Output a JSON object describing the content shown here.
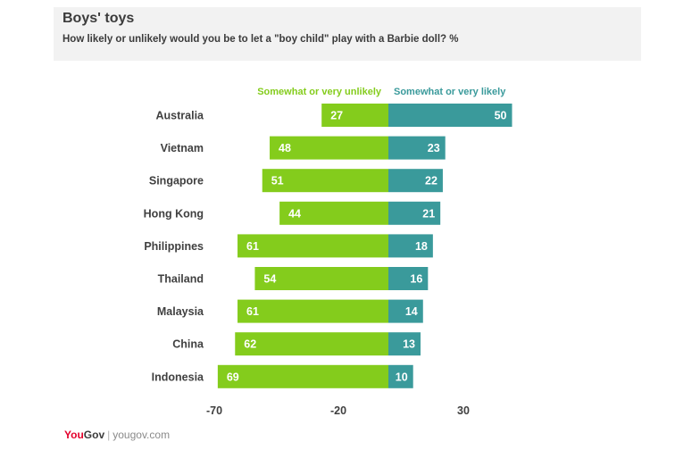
{
  "header": {
    "title": "Boys' toys",
    "subtitle": "How likely or unlikely would you be to let a \"boy child\" play with a Barbie doll? %"
  },
  "footer": {
    "brand_you": "You",
    "brand_gov": "Gov",
    "url": "yougov.com"
  },
  "colors": {
    "unlikely": "#84cc1c",
    "likely": "#3a9a9b"
  },
  "chart_data": {
    "type": "bar",
    "orientation": "horizontal-diverging",
    "categories": [
      "Australia",
      "Vietnam",
      "Singapore",
      "Hong Kong",
      "Philippines",
      "Thailand",
      "Malaysia",
      "China",
      "Indonesia"
    ],
    "series": [
      {
        "name": "Somewhat or very unlikely",
        "values": [
          27,
          48,
          51,
          44,
          61,
          54,
          61,
          62,
          69
        ]
      },
      {
        "name": "Somewhat or very likely",
        "values": [
          50,
          23,
          22,
          21,
          18,
          16,
          14,
          13,
          10
        ]
      }
    ],
    "xticks": [
      "-70",
      "-20",
      "30"
    ],
    "xlim": [
      -70,
      50
    ],
    "legend": "top"
  }
}
